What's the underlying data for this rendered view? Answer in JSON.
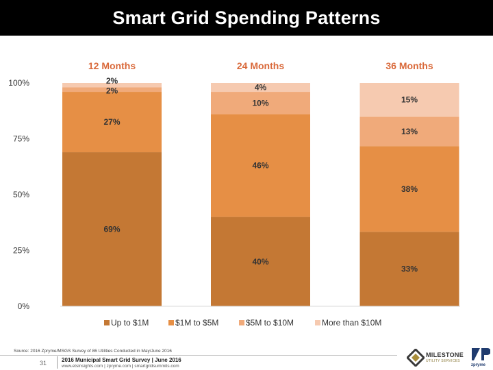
{
  "header": {
    "title": "Smart Grid Spending Patterns"
  },
  "chart_data": {
    "type": "bar",
    "stacked": true,
    "categories": [
      "12 Months",
      "24 Months",
      "36 Months"
    ],
    "series": [
      {
        "name": "Up to $1M",
        "values": [
          69,
          40,
          33
        ],
        "labels": [
          "69%",
          "40%",
          "33%"
        ],
        "color": "#c47834"
      },
      {
        "name": "$1M to $5M",
        "values": [
          27,
          46,
          38
        ],
        "labels": [
          "27%",
          "46%",
          "38%"
        ],
        "color": "#e68f45"
      },
      {
        "name": "$5M to $10M",
        "values": [
          2,
          10,
          13
        ],
        "labels": [
          "2%",
          "10%",
          "13%"
        ],
        "color": "#f0aa7a"
      },
      {
        "name": "More than $10M",
        "values": [
          2,
          4,
          15
        ],
        "labels": [
          "2%",
          "4%",
          "15%"
        ],
        "color": "#f6cab0"
      }
    ],
    "y_ticks": [
      "0%",
      "25%",
      "50%",
      "75%",
      "100%"
    ],
    "ylim": [
      0,
      100
    ],
    "legend_position": "bottom",
    "grid": false,
    "category_label_color": "#d9693a"
  },
  "footer": {
    "source": "Source: 2016 Zpryme/MSGS Survey of 86 Utilities Conducted in May/June 2016",
    "page_number": "31",
    "title": "2016 Municipal Smart Grid Survey | June 2016",
    "urls": "www.etsinsights.com | zpryme.com | smartgridsummits.com",
    "logo_milestone_name": "MILESTONE",
    "logo_milestone_sub": "UTILITY SERVICES",
    "logo_zpryme_name": "zpryme"
  }
}
